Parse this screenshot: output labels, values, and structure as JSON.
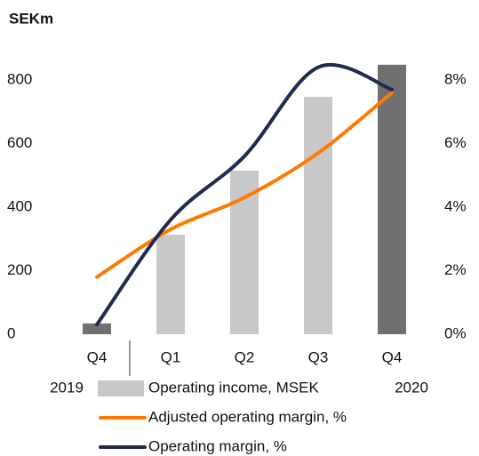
{
  "chart_data": {
    "type": "bar_line",
    "y_axis_label": "SEKm",
    "categories": [
      "Q4",
      "Q1",
      "Q2",
      "Q3",
      "Q4"
    ],
    "year_labels": [
      "2019",
      "2020"
    ],
    "ylim": [
      0,
      800
    ],
    "yticks": [
      0,
      200,
      400,
      600,
      800
    ],
    "y2lim": [
      0,
      8
    ],
    "y2ticks": [
      {
        "value": 0,
        "label": "0%"
      },
      {
        "value": 2,
        "label": "2%"
      },
      {
        "value": 4,
        "label": "4%"
      },
      {
        "value": 6,
        "label": "6%"
      },
      {
        "value": 8,
        "label": "8%"
      }
    ],
    "series": [
      {
        "name": "Operating income, MSEK",
        "kind": "bar",
        "color": "#c8c8c8",
        "colors": [
          "#707070",
          "#c8c8c8",
          "#c8c8c8",
          "#c8c8c8",
          "#707070"
        ],
        "values": [
          34,
          313,
          515,
          747,
          848
        ]
      },
      {
        "name": "Adjusted operating margin, %",
        "kind": "line",
        "axis": "y2",
        "color": "#ff7a00",
        "values": [
          1.8,
          3.3,
          4.3,
          5.7,
          7.6
        ]
      },
      {
        "name": "Operating margin, %",
        "kind": "line",
        "axis": "y2",
        "color": "#1f2a4f",
        "values": [
          0.3,
          3.6,
          5.6,
          8.4,
          7.7
        ]
      }
    ]
  }
}
